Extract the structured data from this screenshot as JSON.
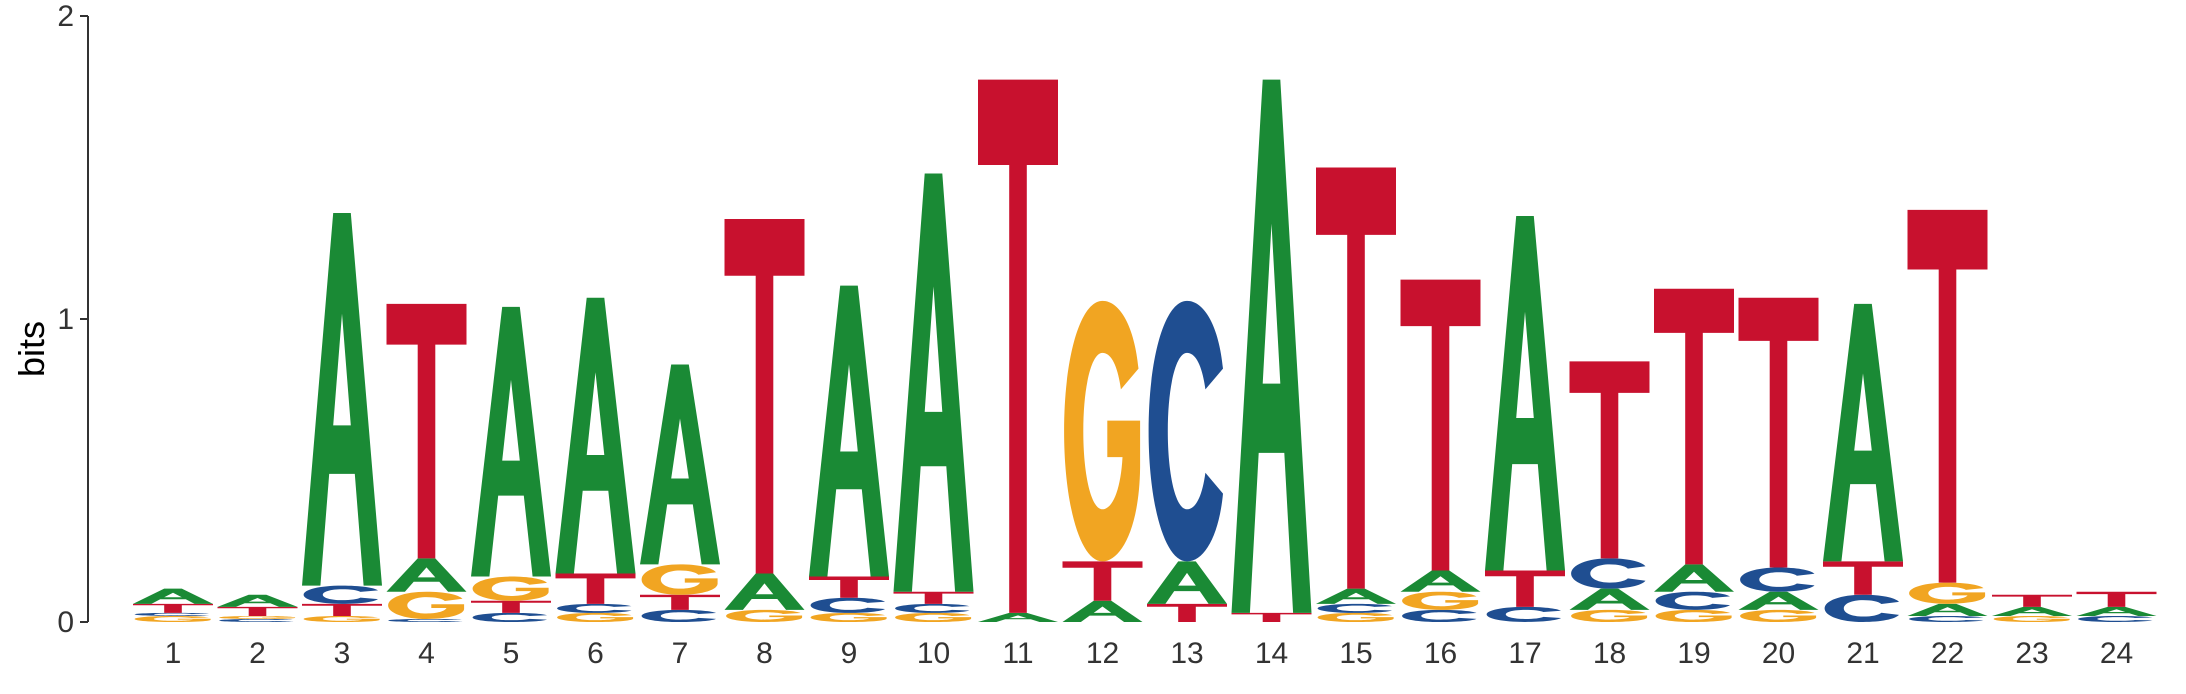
{
  "chart_data": {
    "type": "sequence-logo",
    "title": "",
    "xlabel": "",
    "ylabel": "bits",
    "ylim": [
      0,
      2
    ],
    "yticks": [
      "0",
      "1",
      "2"
    ],
    "positions": [
      "1",
      "2",
      "3",
      "4",
      "5",
      "6",
      "7",
      "8",
      "9",
      "10",
      "11",
      "12",
      "13",
      "14",
      "15",
      "16",
      "17",
      "18",
      "19",
      "20",
      "21",
      "22",
      "23",
      "24"
    ],
    "colors": {
      "A": "#1a8a35",
      "C": "#1f4e91",
      "G": "#f1a522",
      "T": "#c8112e"
    },
    "stacks": [
      [
        [
          "G",
          0.02
        ],
        [
          "C",
          0.01
        ],
        [
          "T",
          0.03
        ],
        [
          "A",
          0.05
        ]
      ],
      [
        [
          "C",
          0.01
        ],
        [
          "G",
          0.01
        ],
        [
          "T",
          0.03
        ],
        [
          "A",
          0.04
        ]
      ],
      [
        [
          "G",
          0.02
        ],
        [
          "T",
          0.04
        ],
        [
          "C",
          0.06
        ],
        [
          "A",
          1.23
        ]
      ],
      [
        [
          "C",
          0.01
        ],
        [
          "G",
          0.09
        ],
        [
          "A",
          0.11
        ],
        [
          "T",
          0.84
        ]
      ],
      [
        [
          "C",
          0.03
        ],
        [
          "T",
          0.04
        ],
        [
          "G",
          0.08
        ],
        [
          "A",
          0.89
        ]
      ],
      [
        [
          "G",
          0.03
        ],
        [
          "C",
          0.03
        ],
        [
          "T",
          0.1
        ],
        [
          "A",
          0.91
        ]
      ],
      [
        [
          "C",
          0.04
        ],
        [
          "T",
          0.05
        ],
        [
          "G",
          0.1
        ],
        [
          "A",
          0.66
        ]
      ],
      [
        [
          "G",
          0.04
        ],
        [
          "A",
          0.12
        ],
        [
          "T",
          1.17
        ]
      ],
      [
        [
          "G",
          0.03
        ],
        [
          "C",
          0.05
        ],
        [
          "T",
          0.07
        ],
        [
          "A",
          0.96
        ]
      ],
      [
        [
          "G",
          0.03
        ],
        [
          "C",
          0.03
        ],
        [
          "T",
          0.04
        ],
        [
          "A",
          1.38
        ]
      ],
      [
        [
          "A",
          0.03
        ],
        [
          "T",
          1.76
        ]
      ],
      [
        [
          "A",
          0.07
        ],
        [
          "T",
          0.13
        ],
        [
          "G",
          0.86
        ]
      ],
      [
        [
          "T",
          0.06
        ],
        [
          "A",
          0.14
        ],
        [
          "C",
          0.86
        ]
      ],
      [
        [
          "T",
          0.03
        ],
        [
          "A",
          1.76
        ]
      ],
      [
        [
          "G",
          0.03
        ],
        [
          "C",
          0.03
        ],
        [
          "A",
          0.05
        ],
        [
          "T",
          1.39
        ]
      ],
      [
        [
          "C",
          0.04
        ],
        [
          "G",
          0.06
        ],
        [
          "A",
          0.07
        ],
        [
          "T",
          0.96
        ]
      ],
      [
        [
          "C",
          0.05
        ],
        [
          "T",
          0.12
        ],
        [
          "A",
          1.17
        ]
      ],
      [
        [
          "G",
          0.04
        ],
        [
          "A",
          0.07
        ],
        [
          "C",
          0.1
        ],
        [
          "T",
          0.65
        ]
      ],
      [
        [
          "G",
          0.04
        ],
        [
          "C",
          0.06
        ],
        [
          "A",
          0.09
        ],
        [
          "T",
          0.91
        ]
      ],
      [
        [
          "G",
          0.04
        ],
        [
          "A",
          0.06
        ],
        [
          "C",
          0.08
        ],
        [
          "T",
          0.89
        ]
      ],
      [
        [
          "C",
          0.09
        ],
        [
          "T",
          0.11
        ],
        [
          "A",
          0.85
        ]
      ],
      [
        [
          "C",
          0.02
        ],
        [
          "A",
          0.04
        ],
        [
          "G",
          0.07
        ],
        [
          "T",
          1.23
        ]
      ],
      [
        [
          "G",
          0.02
        ],
        [
          "A",
          0.03
        ],
        [
          "T",
          0.04
        ]
      ],
      [
        [
          "C",
          0.02
        ],
        [
          "A",
          0.03
        ],
        [
          "T",
          0.05
        ]
      ]
    ]
  }
}
